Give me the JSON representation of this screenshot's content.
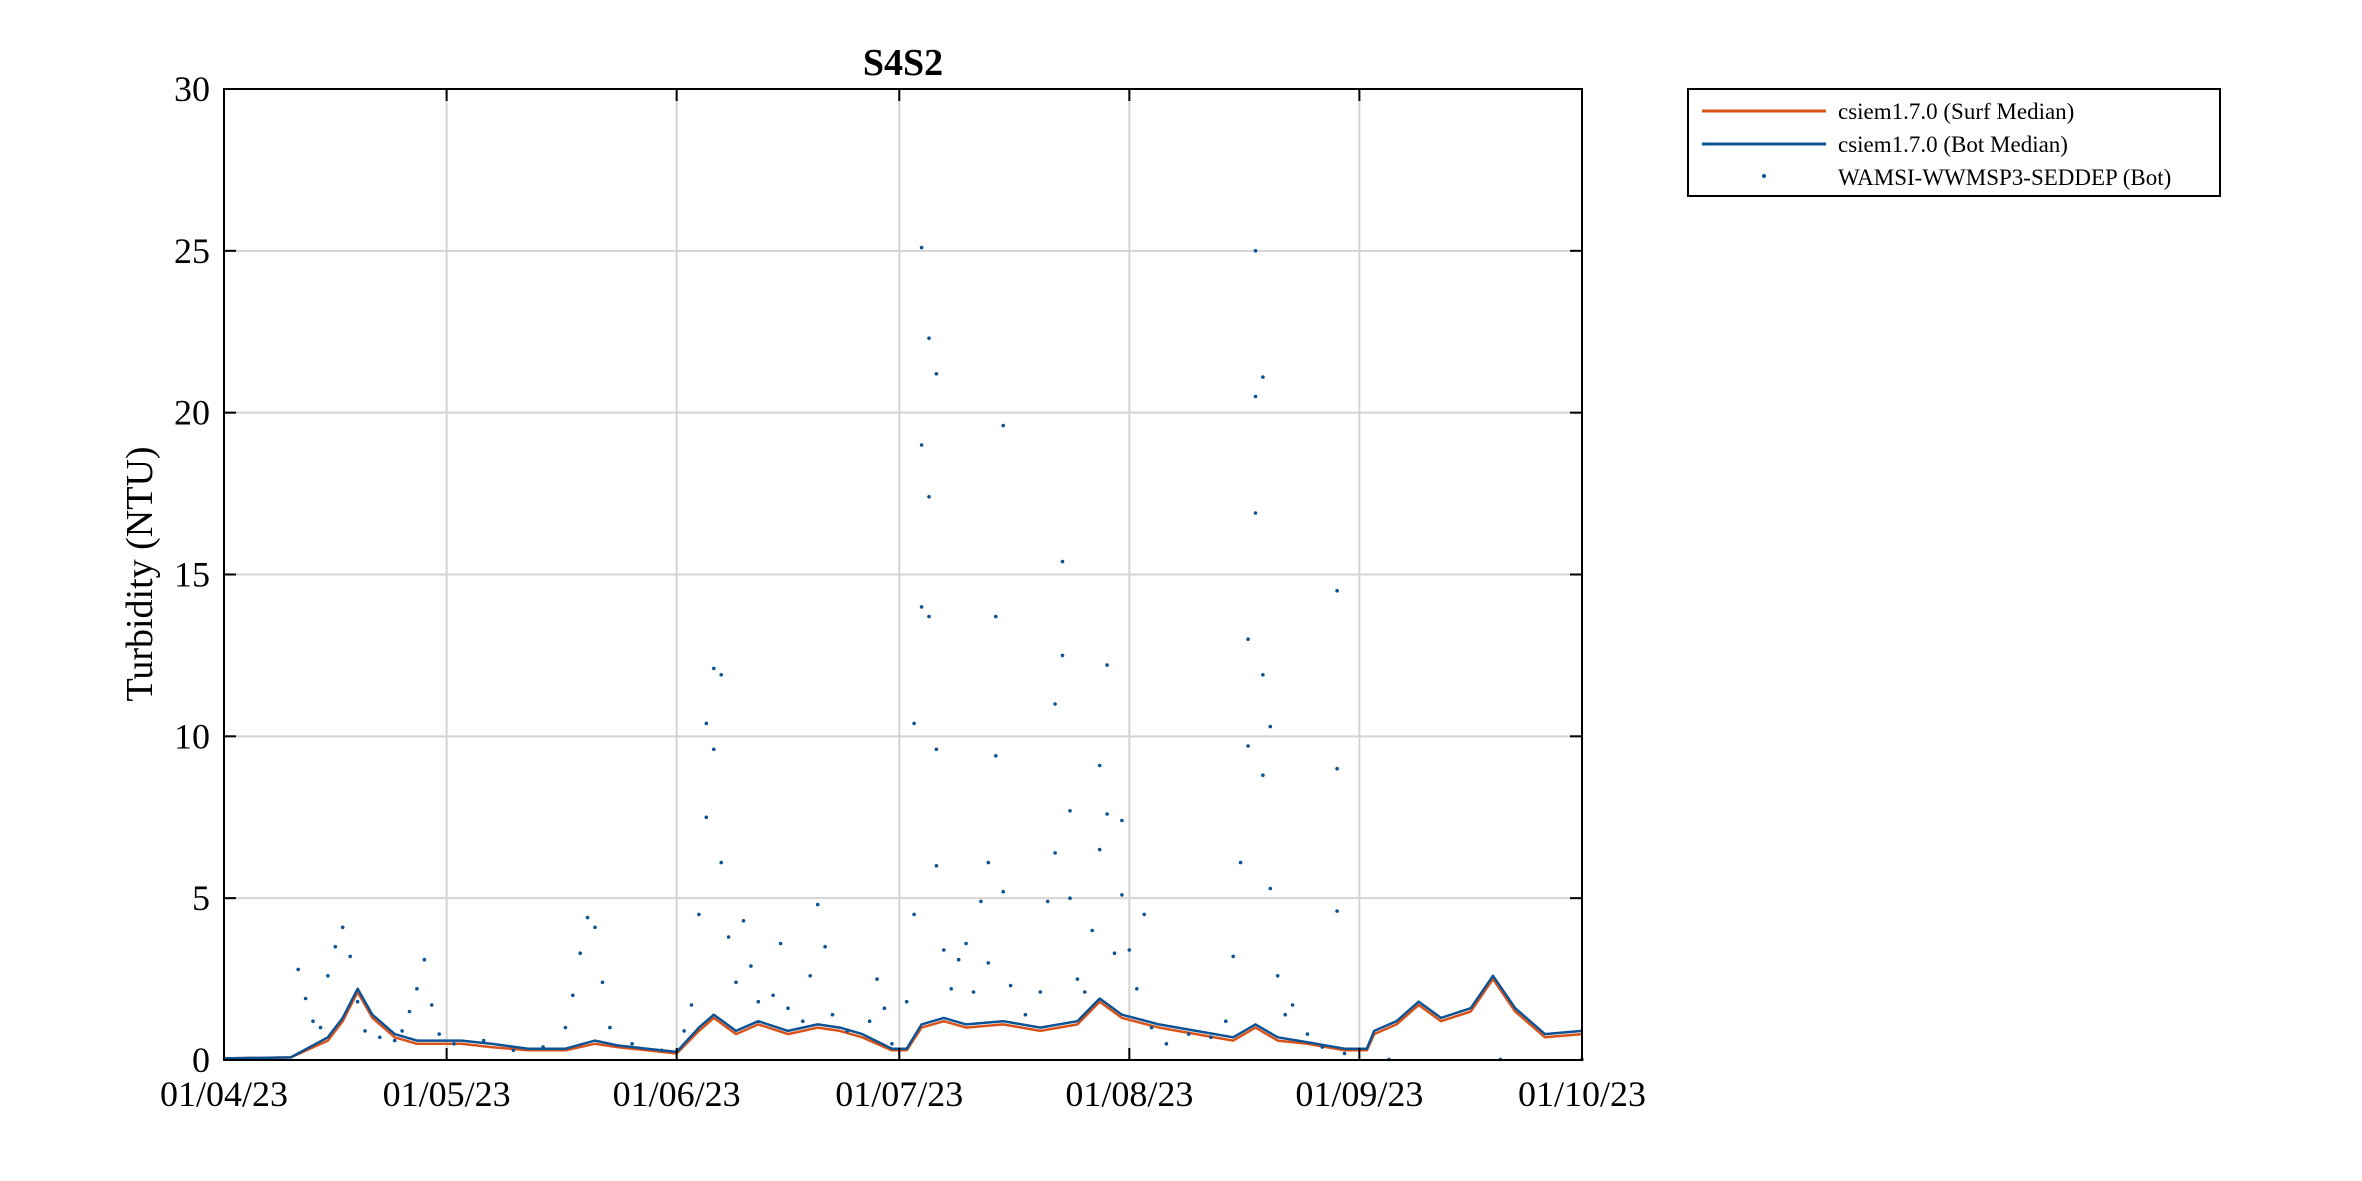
{
  "chart_data": {
    "type": "line",
    "title": "S4S2",
    "xlabel": "",
    "ylabel": "Turbidity (NTU)",
    "ylim": [
      0,
      30
    ],
    "yticks": [
      0,
      5,
      10,
      15,
      20,
      25,
      30
    ],
    "xlim": [
      "2023-04-01",
      "2023-10-01"
    ],
    "xticks": [
      {
        "date": "2023-04-01",
        "label": "01/04/23"
      },
      {
        "date": "2023-05-01",
        "label": "01/05/23"
      },
      {
        "date": "2023-06-01",
        "label": "01/06/23"
      },
      {
        "date": "2023-07-01",
        "label": "01/07/23"
      },
      {
        "date": "2023-08-01",
        "label": "01/08/23"
      },
      {
        "date": "2023-09-01",
        "label": "01/09/23"
      },
      {
        "date": "2023-10-01",
        "label": "01/10/23"
      }
    ],
    "grid": true,
    "legend_position": "outside-top-right",
    "series": [
      {
        "name": "csiem1.7.0 (Surf Median)",
        "style": "line",
        "color": "#d95319",
        "points": [
          [
            "2023-04-01",
            0.05
          ],
          [
            "2023-04-10",
            0.08
          ],
          [
            "2023-04-15",
            0.6
          ],
          [
            "2023-04-17",
            1.2
          ],
          [
            "2023-04-19",
            2.1
          ],
          [
            "2023-04-21",
            1.3
          ],
          [
            "2023-04-24",
            0.7
          ],
          [
            "2023-04-27",
            0.5
          ],
          [
            "2023-05-03",
            0.5
          ],
          [
            "2023-05-07",
            0.4
          ],
          [
            "2023-05-12",
            0.3
          ],
          [
            "2023-05-17",
            0.3
          ],
          [
            "2023-05-21",
            0.5
          ],
          [
            "2023-05-24",
            0.4
          ],
          [
            "2023-05-28",
            0.3
          ],
          [
            "2023-06-01",
            0.2
          ],
          [
            "2023-06-04",
            0.9
          ],
          [
            "2023-06-06",
            1.3
          ],
          [
            "2023-06-09",
            0.8
          ],
          [
            "2023-06-12",
            1.1
          ],
          [
            "2023-06-16",
            0.8
          ],
          [
            "2023-06-20",
            1.0
          ],
          [
            "2023-06-23",
            0.9
          ],
          [
            "2023-06-26",
            0.7
          ],
          [
            "2023-06-30",
            0.3
          ],
          [
            "2023-07-02",
            0.3
          ],
          [
            "2023-07-04",
            1.0
          ],
          [
            "2023-07-07",
            1.2
          ],
          [
            "2023-07-10",
            1.0
          ],
          [
            "2023-07-15",
            1.1
          ],
          [
            "2023-07-20",
            0.9
          ],
          [
            "2023-07-25",
            1.1
          ],
          [
            "2023-07-28",
            1.8
          ],
          [
            "2023-07-31",
            1.3
          ],
          [
            "2023-08-05",
            1.0
          ],
          [
            "2023-08-10",
            0.8
          ],
          [
            "2023-08-15",
            0.6
          ],
          [
            "2023-08-18",
            1.0
          ],
          [
            "2023-08-21",
            0.6
          ],
          [
            "2023-08-25",
            0.5
          ],
          [
            "2023-08-30",
            0.3
          ],
          [
            "2023-09-02",
            0.3
          ],
          [
            "2023-09-03",
            0.8
          ],
          [
            "2023-09-06",
            1.1
          ],
          [
            "2023-09-09",
            1.7
          ],
          [
            "2023-09-12",
            1.2
          ],
          [
            "2023-09-16",
            1.5
          ],
          [
            "2023-09-19",
            2.5
          ],
          [
            "2023-09-22",
            1.5
          ],
          [
            "2023-09-26",
            0.7
          ],
          [
            "2023-10-01",
            0.8
          ]
        ]
      },
      {
        "name": "csiem1.7.0 (Bot Median)",
        "style": "line",
        "color": "#0b5394",
        "points": [
          [
            "2023-04-01",
            0.05
          ],
          [
            "2023-04-10",
            0.08
          ],
          [
            "2023-04-15",
            0.7
          ],
          [
            "2023-04-17",
            1.3
          ],
          [
            "2023-04-19",
            2.2
          ],
          [
            "2023-04-21",
            1.4
          ],
          [
            "2023-04-24",
            0.8
          ],
          [
            "2023-04-27",
            0.6
          ],
          [
            "2023-05-03",
            0.6
          ],
          [
            "2023-05-07",
            0.5
          ],
          [
            "2023-05-12",
            0.35
          ],
          [
            "2023-05-17",
            0.35
          ],
          [
            "2023-05-21",
            0.6
          ],
          [
            "2023-05-24",
            0.45
          ],
          [
            "2023-05-28",
            0.35
          ],
          [
            "2023-06-01",
            0.25
          ],
          [
            "2023-06-04",
            1.0
          ],
          [
            "2023-06-06",
            1.4
          ],
          [
            "2023-06-09",
            0.9
          ],
          [
            "2023-06-12",
            1.2
          ],
          [
            "2023-06-16",
            0.9
          ],
          [
            "2023-06-20",
            1.1
          ],
          [
            "2023-06-23",
            1.0
          ],
          [
            "2023-06-26",
            0.8
          ],
          [
            "2023-06-30",
            0.35
          ],
          [
            "2023-07-02",
            0.35
          ],
          [
            "2023-07-04",
            1.1
          ],
          [
            "2023-07-07",
            1.3
          ],
          [
            "2023-07-10",
            1.1
          ],
          [
            "2023-07-15",
            1.2
          ],
          [
            "2023-07-20",
            1.0
          ],
          [
            "2023-07-25",
            1.2
          ],
          [
            "2023-07-28",
            1.9
          ],
          [
            "2023-07-31",
            1.4
          ],
          [
            "2023-08-05",
            1.1
          ],
          [
            "2023-08-10",
            0.9
          ],
          [
            "2023-08-15",
            0.7
          ],
          [
            "2023-08-18",
            1.1
          ],
          [
            "2023-08-21",
            0.7
          ],
          [
            "2023-08-25",
            0.55
          ],
          [
            "2023-08-30",
            0.35
          ],
          [
            "2023-09-02",
            0.35
          ],
          [
            "2023-09-03",
            0.9
          ],
          [
            "2023-09-06",
            1.2
          ],
          [
            "2023-09-09",
            1.8
          ],
          [
            "2023-09-12",
            1.3
          ],
          [
            "2023-09-16",
            1.6
          ],
          [
            "2023-09-19",
            2.6
          ],
          [
            "2023-09-22",
            1.6
          ],
          [
            "2023-09-26",
            0.8
          ],
          [
            "2023-10-01",
            0.9
          ]
        ]
      },
      {
        "name": "WAMSI-WWMSP3-SEDDEP (Bot)",
        "style": "dots",
        "color": "#0b5394",
        "points": [
          [
            "2023-04-11",
            2.8
          ],
          [
            "2023-04-12",
            1.9
          ],
          [
            "2023-04-13",
            1.2
          ],
          [
            "2023-04-14",
            1.0
          ],
          [
            "2023-04-15",
            2.6
          ],
          [
            "2023-04-16",
            3.5
          ],
          [
            "2023-04-17",
            4.1
          ],
          [
            "2023-04-18",
            3.2
          ],
          [
            "2023-04-19",
            1.8
          ],
          [
            "2023-04-20",
            0.9
          ],
          [
            "2023-04-22",
            0.7
          ],
          [
            "2023-04-24",
            0.6
          ],
          [
            "2023-04-25",
            0.9
          ],
          [
            "2023-04-26",
            1.5
          ],
          [
            "2023-04-27",
            2.2
          ],
          [
            "2023-04-28",
            3.1
          ],
          [
            "2023-04-29",
            1.7
          ],
          [
            "2023-04-30",
            0.8
          ],
          [
            "2023-05-02",
            0.5
          ],
          [
            "2023-05-06",
            0.6
          ],
          [
            "2023-05-10",
            0.3
          ],
          [
            "2023-05-14",
            0.4
          ],
          [
            "2023-05-17",
            1.0
          ],
          [
            "2023-05-18",
            2.0
          ],
          [
            "2023-05-19",
            3.3
          ],
          [
            "2023-05-20",
            4.4
          ],
          [
            "2023-05-21",
            4.1
          ],
          [
            "2023-05-22",
            2.4
          ],
          [
            "2023-05-23",
            1.0
          ],
          [
            "2023-05-26",
            0.5
          ],
          [
            "2023-05-30",
            0.3
          ],
          [
            "2023-06-02",
            0.9
          ],
          [
            "2023-06-03",
            1.7
          ],
          [
            "2023-06-04",
            4.5
          ],
          [
            "2023-06-05",
            7.5
          ],
          [
            "2023-06-05",
            10.4
          ],
          [
            "2023-06-06",
            12.1
          ],
          [
            "2023-06-06",
            9.6
          ],
          [
            "2023-06-07",
            6.1
          ],
          [
            "2023-06-07",
            11.9
          ],
          [
            "2023-06-08",
            3.8
          ],
          [
            "2023-06-09",
            2.4
          ],
          [
            "2023-06-10",
            4.3
          ],
          [
            "2023-06-11",
            2.9
          ],
          [
            "2023-06-12",
            1.8
          ],
          [
            "2023-06-14",
            2.0
          ],
          [
            "2023-06-15",
            3.6
          ],
          [
            "2023-06-16",
            1.6
          ],
          [
            "2023-06-18",
            1.2
          ],
          [
            "2023-06-19",
            2.6
          ],
          [
            "2023-06-20",
            4.8
          ],
          [
            "2023-06-21",
            3.5
          ],
          [
            "2023-06-22",
            1.4
          ],
          [
            "2023-06-24",
            0.9
          ],
          [
            "2023-06-27",
            1.2
          ],
          [
            "2023-06-28",
            2.5
          ],
          [
            "2023-06-29",
            1.6
          ],
          [
            "2023-06-30",
            0.5
          ],
          [
            "2023-07-02",
            1.8
          ],
          [
            "2023-07-03",
            4.5
          ],
          [
            "2023-07-03",
            10.4
          ],
          [
            "2023-07-04",
            14.0
          ],
          [
            "2023-07-04",
            19.0
          ],
          [
            "2023-07-04",
            25.1
          ],
          [
            "2023-07-05",
            22.3
          ],
          [
            "2023-07-05",
            17.4
          ],
          [
            "2023-07-05",
            13.7
          ],
          [
            "2023-07-06",
            21.2
          ],
          [
            "2023-07-06",
            9.6
          ],
          [
            "2023-07-06",
            6.0
          ],
          [
            "2023-07-07",
            3.4
          ],
          [
            "2023-07-08",
            2.2
          ],
          [
            "2023-07-09",
            3.1
          ],
          [
            "2023-07-10",
            3.6
          ],
          [
            "2023-07-11",
            2.1
          ],
          [
            "2023-07-12",
            4.9
          ],
          [
            "2023-07-13",
            6.1
          ],
          [
            "2023-07-13",
            3.0
          ],
          [
            "2023-07-14",
            9.4
          ],
          [
            "2023-07-14",
            13.7
          ],
          [
            "2023-07-15",
            19.6
          ],
          [
            "2023-07-15",
            5.2
          ],
          [
            "2023-07-16",
            2.3
          ],
          [
            "2023-07-18",
            1.4
          ],
          [
            "2023-07-20",
            2.1
          ],
          [
            "2023-07-21",
            4.9
          ],
          [
            "2023-07-22",
            6.4
          ],
          [
            "2023-07-22",
            11.0
          ],
          [
            "2023-07-23",
            15.4
          ],
          [
            "2023-07-23",
            12.5
          ],
          [
            "2023-07-24",
            7.7
          ],
          [
            "2023-07-24",
            5.0
          ],
          [
            "2023-07-25",
            2.5
          ],
          [
            "2023-07-26",
            2.1
          ],
          [
            "2023-07-27",
            4.0
          ],
          [
            "2023-07-28",
            6.5
          ],
          [
            "2023-07-28",
            9.1
          ],
          [
            "2023-07-29",
            12.2
          ],
          [
            "2023-07-29",
            7.6
          ],
          [
            "2023-07-30",
            3.3
          ],
          [
            "2023-07-31",
            5.1
          ],
          [
            "2023-07-31",
            7.4
          ],
          [
            "2023-08-01",
            3.4
          ],
          [
            "2023-08-02",
            2.2
          ],
          [
            "2023-08-03",
            4.5
          ],
          [
            "2023-08-04",
            1.0
          ],
          [
            "2023-08-06",
            0.5
          ],
          [
            "2023-08-09",
            0.8
          ],
          [
            "2023-08-12",
            0.7
          ],
          [
            "2023-08-14",
            1.2
          ],
          [
            "2023-08-15",
            3.2
          ],
          [
            "2023-08-16",
            6.1
          ],
          [
            "2023-08-17",
            9.7
          ],
          [
            "2023-08-17",
            13.0
          ],
          [
            "2023-08-18",
            20.5
          ],
          [
            "2023-08-18",
            25.0
          ],
          [
            "2023-08-18",
            16.9
          ],
          [
            "2023-08-19",
            21.1
          ],
          [
            "2023-08-19",
            11.9
          ],
          [
            "2023-08-19",
            8.8
          ],
          [
            "2023-08-20",
            5.3
          ],
          [
            "2023-08-20",
            10.3
          ],
          [
            "2023-08-21",
            2.6
          ],
          [
            "2023-08-22",
            1.4
          ],
          [
            "2023-08-23",
            1.7
          ],
          [
            "2023-08-25",
            0.8
          ],
          [
            "2023-08-27",
            0.4
          ],
          [
            "2023-08-29",
            4.6
          ],
          [
            "2023-08-29",
            9.0
          ],
          [
            "2023-08-29",
            14.5
          ],
          [
            "2023-08-30",
            0.2
          ],
          [
            "2023-09-05",
            0.02
          ],
          [
            "2023-09-20",
            0.02
          ],
          [
            "2023-10-01",
            0.02
          ]
        ]
      }
    ]
  }
}
